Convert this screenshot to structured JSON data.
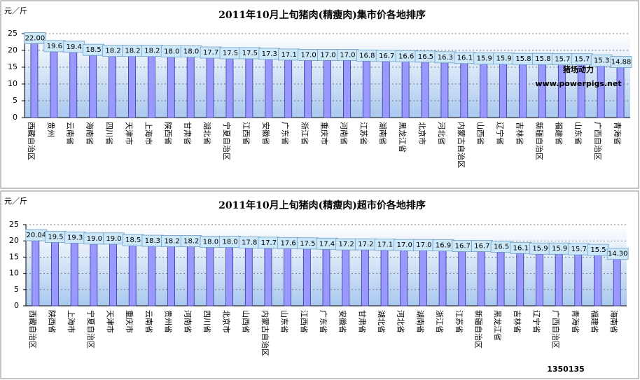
{
  "chart_data": [
    {
      "type": "bar",
      "title": "2011年10月上旬猪肉(精瘦肉)集市价各地排序",
      "y_label": "元／斤",
      "categories": [
        "西藏自治区",
        "贵州",
        "云南省",
        "海南省",
        "四川省",
        "天津市",
        "上海市",
        "陕西省",
        "甘肃省",
        "湖北省",
        "宁夏自治区",
        "江西省",
        "安徽省",
        "广东省",
        "浙江省",
        "重庆市",
        "河南省",
        "江苏省",
        "湖南省",
        "黑龙江省",
        "北京市",
        "河北省",
        "内蒙古自治区",
        "山西省",
        "辽宁省",
        "吉林省",
        "新疆自治区",
        "福建省",
        "山东省",
        "广西自治区",
        "青海省"
      ],
      "values": [
        22,
        19.6,
        19.4,
        18.5,
        18.2,
        18.2,
        18.2,
        18.0,
        18.0,
        17.7,
        17.5,
        17.5,
        17.3,
        17.1,
        17.0,
        17.0,
        17.0,
        16.8,
        16.7,
        16.6,
        16.5,
        16.3,
        16.1,
        15.9,
        15.9,
        15.8,
        15.8,
        15.7,
        15.7,
        15.3,
        14.88
      ],
      "value_labels": [
        "22.00",
        "19.6",
        "19.4",
        "18.5",
        "18.2",
        "18.2",
        "18.2",
        "18.0",
        "18.0",
        "17.7",
        "17.5",
        "17.5",
        "17.3",
        "17.1",
        "17.0",
        "17.0",
        "17.0",
        "16.8",
        "16.7",
        "16.6",
        "16.5",
        "16.3",
        "16.1",
        "15.9",
        "15.9",
        "15.8",
        "15.8",
        "15.7",
        "15.7",
        "15.3",
        "14.88"
      ],
      "color": "#9999ff",
      "ylim": [
        0,
        25
      ],
      "yticks": [
        0,
        5,
        10,
        15,
        20,
        25
      ],
      "grid": true,
      "annotations": [
        "猪场动力",
        "www.powerpigs.net"
      ]
    },
    {
      "type": "bar",
      "title": "2011年10月上旬猪肉(精瘦肉)超市价各地排序",
      "y_label": "元／斤",
      "categories": [
        "西藏自治区",
        "陕西省",
        "上海市",
        "宁夏自治区",
        "天津市",
        "重庆市",
        "云南省",
        "贵州省",
        "河南省",
        "四川省",
        "北京市",
        "山西省",
        "内蒙古自治区",
        "山东省",
        "江西省",
        "广东省",
        "安徽省",
        "甘肃省",
        "湖北省",
        "河北省",
        "湖南省",
        "浙江省",
        "江苏省",
        "新疆自治区",
        "黑龙江省",
        "吉林省",
        "辽宁省",
        "广西自治区",
        "青海省",
        "福建省",
        "海南省"
      ],
      "values": [
        20.04,
        19.5,
        19.3,
        19.0,
        19.0,
        18.5,
        18.3,
        18.2,
        18.2,
        18.0,
        18.0,
        17.8,
        17.7,
        17.6,
        17.5,
        17.4,
        17.2,
        17.2,
        17.1,
        17.0,
        17.0,
        16.9,
        16.7,
        16.7,
        16.5,
        16.1,
        15.9,
        15.9,
        15.7,
        15.5,
        14.3
      ],
      "value_labels": [
        "20.04",
        "19.5",
        "19.3",
        "19.0",
        "19.0",
        "18.5",
        "18.3",
        "18.2",
        "18.2",
        "18.0",
        "18.0",
        "17.8",
        "17.7",
        "17.6",
        "17.5",
        "17.4",
        "17.2",
        "17.2",
        "17.1",
        "17.0",
        "17.0",
        "16.9",
        "16.7",
        "16.7",
        "16.5",
        "16.1",
        "15.9",
        "15.9",
        "15.7",
        "15.5",
        "14.30"
      ],
      "color": "#9999ff",
      "ylim": [
        0,
        25
      ],
      "yticks": [
        0,
        5,
        10,
        15,
        20,
        25
      ],
      "grid": true,
      "annotations": [
        "1350135"
      ]
    }
  ]
}
